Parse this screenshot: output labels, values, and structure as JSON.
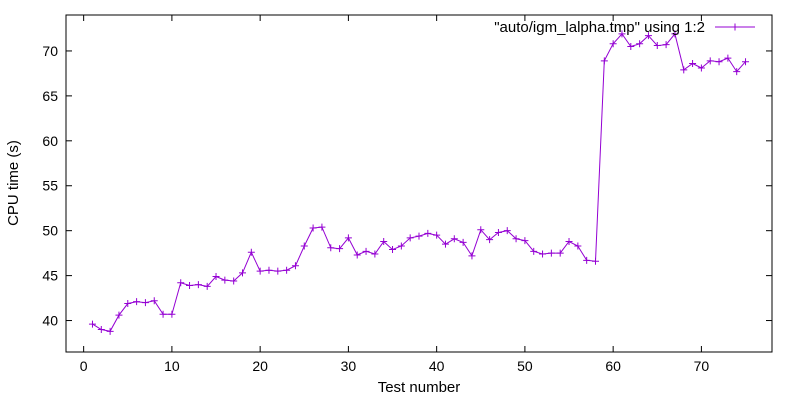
{
  "chart_data": {
    "type": "line",
    "xlabel": "Test number",
    "ylabel": "CPU time (s)",
    "xlim": [
      -2,
      78
    ],
    "ylim": [
      36.5,
      74
    ],
    "xticks": [
      0,
      10,
      20,
      30,
      40,
      50,
      60,
      70
    ],
    "yticks": [
      40,
      45,
      50,
      55,
      60,
      65,
      70
    ],
    "grid": false,
    "legend_position": "top-right",
    "series": [
      {
        "name": "\"auto/igm_lalpha.tmp\" using 1:2",
        "color": "#9400d3",
        "marker": "plus",
        "x": [
          1,
          2,
          3,
          4,
          5,
          6,
          7,
          8,
          9,
          10,
          11,
          12,
          13,
          14,
          15,
          16,
          17,
          18,
          19,
          20,
          21,
          22,
          23,
          24,
          25,
          26,
          27,
          28,
          29,
          30,
          31,
          32,
          33,
          34,
          35,
          36,
          37,
          38,
          39,
          40,
          41,
          42,
          43,
          44,
          45,
          46,
          47,
          48,
          49,
          50,
          51,
          52,
          53,
          54,
          55,
          56,
          57,
          58,
          59,
          60,
          61,
          62,
          63,
          64,
          65,
          66,
          67,
          68,
          69,
          70,
          71,
          72,
          73,
          74,
          75
        ],
        "y": [
          39.6,
          39.0,
          38.8,
          40.6,
          41.9,
          42.1,
          42.0,
          42.2,
          40.7,
          40.7,
          44.2,
          43.9,
          44.0,
          43.8,
          44.9,
          44.5,
          44.4,
          45.3,
          47.6,
          45.5,
          45.6,
          45.5,
          45.6,
          46.1,
          48.3,
          50.3,
          50.4,
          48.1,
          48.0,
          49.2,
          47.3,
          47.7,
          47.4,
          48.8,
          47.9,
          48.3,
          49.2,
          49.4,
          49.7,
          49.5,
          48.5,
          49.1,
          48.7,
          47.2,
          50.1,
          49.0,
          49.8,
          50.0,
          49.1,
          48.9,
          47.7,
          47.4,
          47.5,
          47.5,
          48.8,
          48.3,
          46.7,
          46.6,
          68.9,
          70.8,
          71.9,
          70.5,
          70.8,
          71.7,
          70.6,
          70.7,
          71.9,
          67.9,
          68.6,
          68.1,
          68.9,
          68.8,
          69.2,
          67.7,
          68.8
        ]
      }
    ]
  }
}
